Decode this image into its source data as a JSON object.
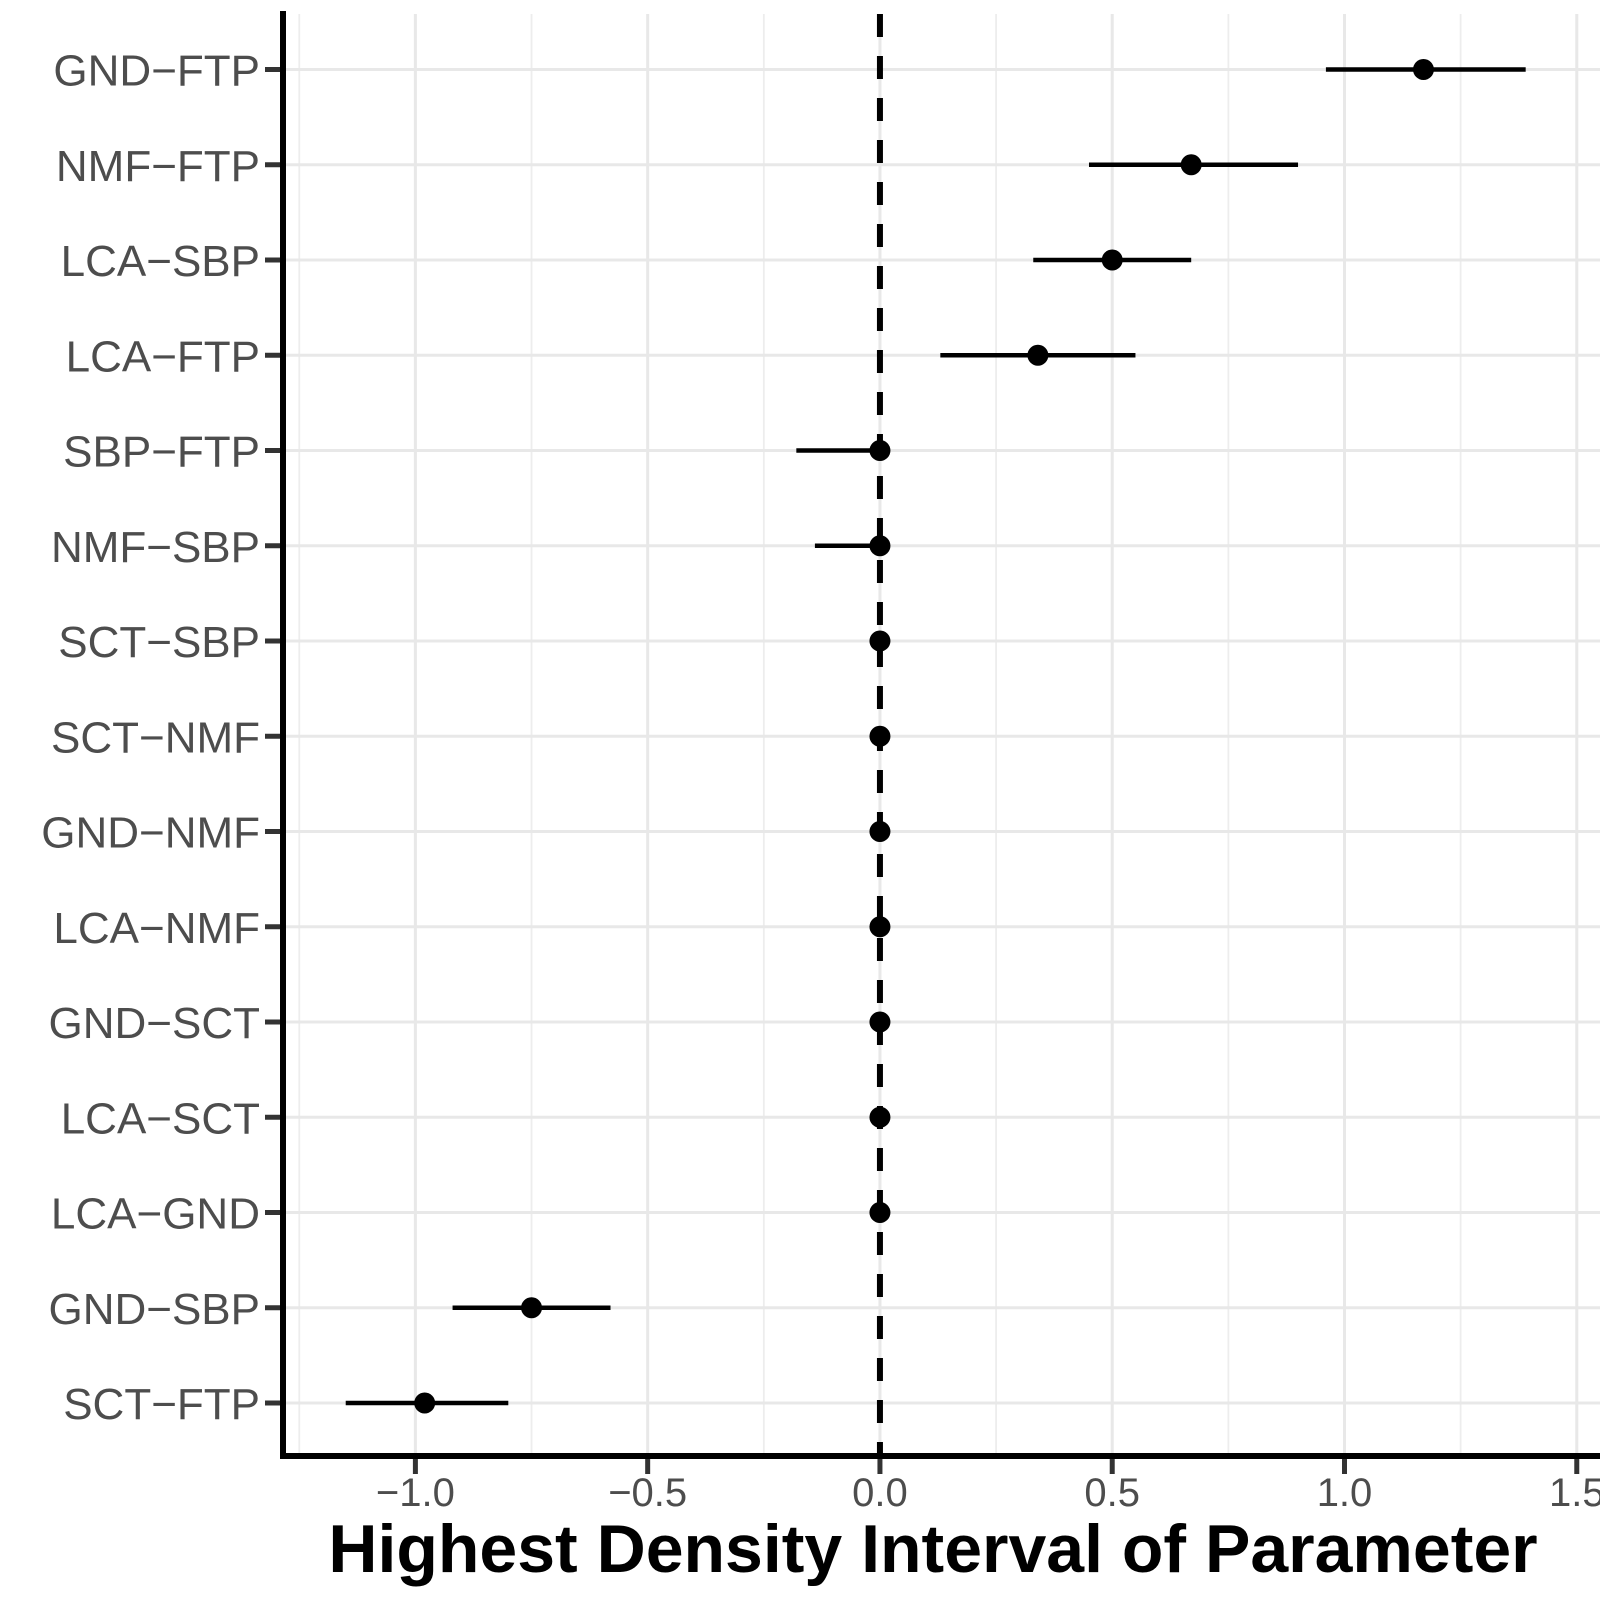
{
  "chart_data": {
    "type": "dot_interval",
    "title": "",
    "xlabel": "Highest Density Interval of Parameter",
    "ylabel": "",
    "xlim": [
      -1.285,
      1.55
    ],
    "x_major_ticks": [
      -1.0,
      -0.5,
      0.0,
      0.5,
      1.0,
      1.5
    ],
    "x_tick_labels": [
      "−1.0",
      "−0.5",
      "0.0",
      "0.5",
      "1.0",
      "1.5"
    ],
    "x_minor_ticks": [
      -1.25,
      -0.75,
      -0.25,
      0.25,
      0.75,
      1.25
    ],
    "grid": "on",
    "legend": "none",
    "reference_line": {
      "x": 0.0,
      "style": "dashed"
    },
    "rows": [
      {
        "label": "GND−FTP",
        "center": 1.17,
        "lower": 0.96,
        "upper": 1.39
      },
      {
        "label": "NMF−FTP",
        "center": 0.67,
        "lower": 0.45,
        "upper": 0.9
      },
      {
        "label": "LCA−SBP",
        "center": 0.5,
        "lower": 0.33,
        "upper": 0.67
      },
      {
        "label": "LCA−FTP",
        "center": 0.34,
        "lower": 0.13,
        "upper": 0.55
      },
      {
        "label": "SBP−FTP",
        "center": 0.0,
        "lower": -0.18,
        "upper": 0.02
      },
      {
        "label": "NMF−SBP",
        "center": 0.0,
        "lower": -0.14,
        "upper": 0.02
      },
      {
        "label": "SCT−SBP",
        "center": 0.0,
        "lower": -0.02,
        "upper": 0.02
      },
      {
        "label": "SCT−NMF",
        "center": 0.0,
        "lower": -0.01,
        "upper": 0.01
      },
      {
        "label": "GND−NMF",
        "center": 0.0,
        "lower": -0.01,
        "upper": 0.01
      },
      {
        "label": "LCA−NMF",
        "center": 0.0,
        "lower": -0.01,
        "upper": 0.01
      },
      {
        "label": "GND−SCT",
        "center": 0.0,
        "lower": -0.01,
        "upper": 0.01
      },
      {
        "label": "LCA−SCT",
        "center": 0.0,
        "lower": -0.01,
        "upper": 0.01
      },
      {
        "label": "LCA−GND",
        "center": 0.0,
        "lower": -0.01,
        "upper": 0.01
      },
      {
        "label": "GND−SBP",
        "center": -0.75,
        "lower": -0.92,
        "upper": -0.58
      },
      {
        "label": "SCT−FTP",
        "center": -0.98,
        "lower": -1.15,
        "upper": -0.8
      }
    ]
  },
  "colors": {
    "background": "#ffffff",
    "point": "#000000",
    "interval": "#000000",
    "reference": "#000000",
    "axis": "#000000",
    "tick": "#333333",
    "tick_label": "#4d4d4d",
    "category_label": "#4d4d4d",
    "grid_major": "#e8e8e8",
    "grid_minor": "#ededed",
    "axis_title": "#000000"
  }
}
